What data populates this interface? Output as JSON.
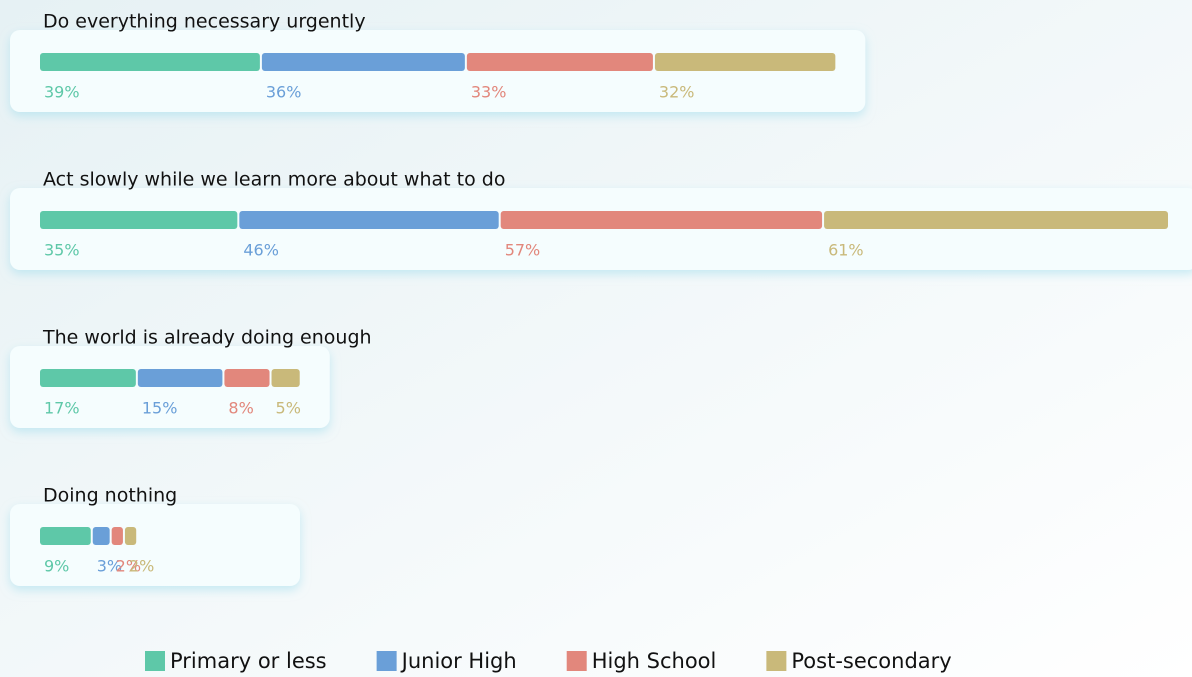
{
  "chart_data": {
    "type": "stacked-bar",
    "categories": [
      "Do everything necessary urgently",
      "Act slowly while we learn more about what to do",
      "The world is already doing enough",
      "Doing nothing"
    ],
    "series": [
      {
        "name": "Primary or less",
        "color": "#5ec8a8",
        "values": [
          39,
          35,
          17,
          9
        ],
        "value_labels": [
          "39%",
          "35%",
          "17%",
          "9%"
        ]
      },
      {
        "name": "Junior High",
        "color": "#6a9fd8",
        "values": [
          36,
          46,
          15,
          3
        ],
        "value_labels": [
          "36%",
          "46%",
          "15%",
          "3%"
        ]
      },
      {
        "name": "High School",
        "color": "#e2877c",
        "values": [
          33,
          57,
          8,
          2
        ],
        "value_labels": [
          "33%",
          "57%",
          "8%",
          "2%"
        ]
      },
      {
        "name": "Post-secondary",
        "color": "#c9b97a",
        "values": [
          32,
          61,
          5,
          2
        ],
        "value_labels": [
          "32%",
          "61%",
          "5%",
          "2%"
        ]
      }
    ]
  }
}
